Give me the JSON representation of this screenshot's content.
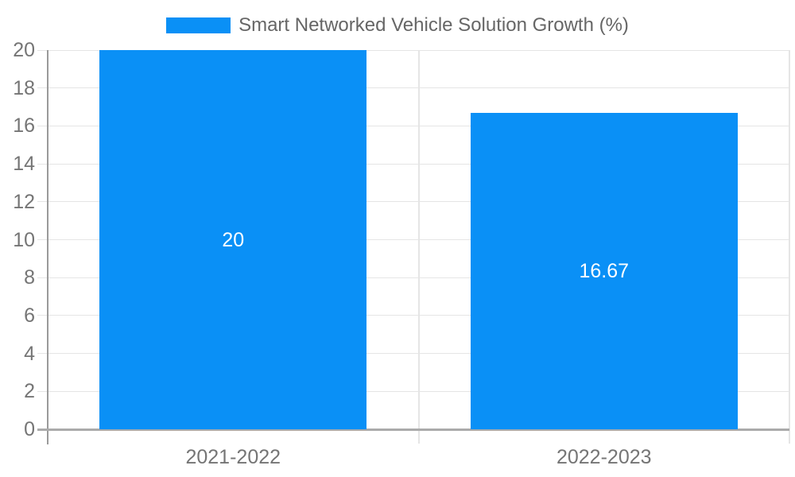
{
  "chart_data": {
    "type": "bar",
    "title": "Smart Networked Vehicle Solution Growth (%)",
    "legend_position": "top",
    "categories": [
      "2021-2022",
      "2022-2023"
    ],
    "values": [
      20,
      16.67
    ],
    "value_labels": [
      "20",
      "16.67"
    ],
    "y_ticks": [
      0,
      2,
      4,
      6,
      8,
      10,
      12,
      14,
      16,
      18,
      20
    ],
    "ylim": [
      0,
      20
    ],
    "xlabel": "",
    "ylabel": "",
    "grid": true
  },
  "colors": {
    "bar": "#0a90f6",
    "grid_line": "#e5e5e5",
    "axis_line": "#9a9a9a",
    "zero_line": "#ababab",
    "tick_text": "#757575",
    "legend_text": "#666666",
    "value_label_text": "#ffffff",
    "background": "#ffffff"
  }
}
